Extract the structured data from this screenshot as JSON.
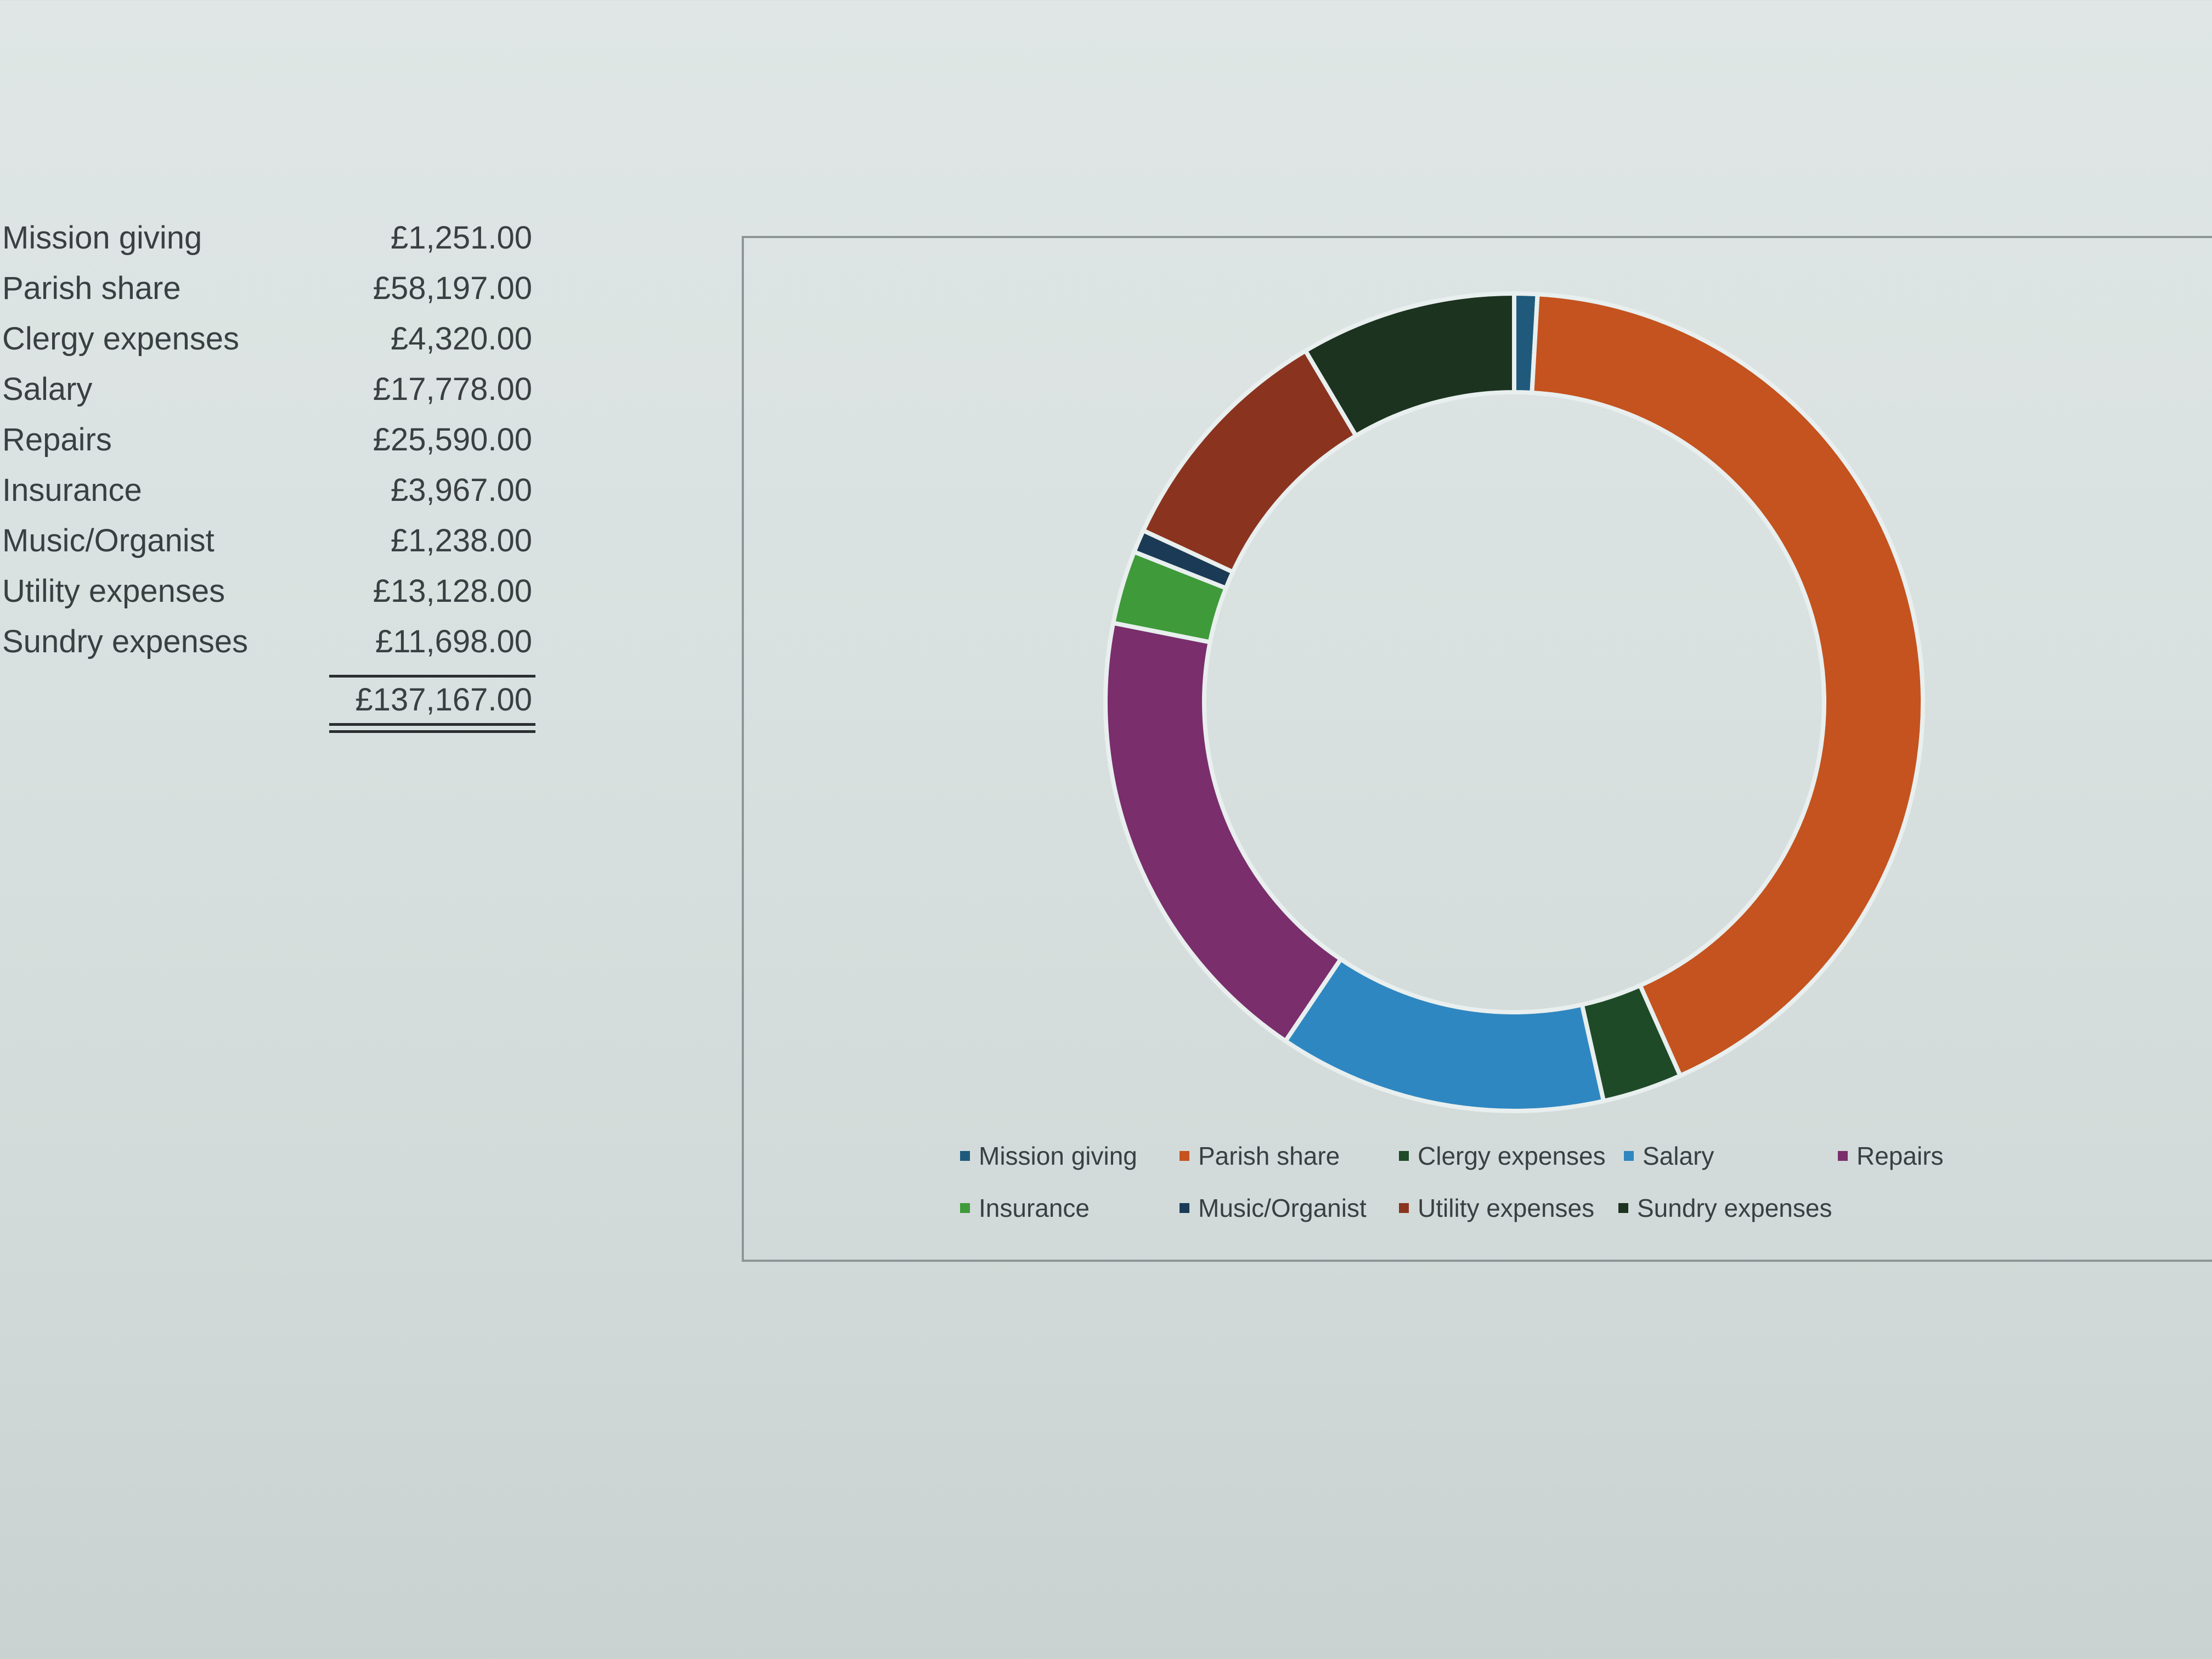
{
  "chart_data": {
    "type": "pie",
    "subtype": "donut",
    "categories": [
      "Mission giving",
      "Parish share",
      "Clergy expenses",
      "Salary",
      "Repairs",
      "Insurance",
      "Music/Organist",
      "Utility expenses",
      "Sundry expenses"
    ],
    "values": [
      1251,
      58197,
      4320,
      17778,
      25590,
      3967,
      1238,
      13128,
      11698
    ],
    "value_labels": [
      "£1,251.00",
      "£58,197.00",
      "£4,320.00",
      "£17,778.00",
      "£25,590.00",
      "£3,967.00",
      "£1,238.00",
      "£13,128.00",
      "£11,698.00"
    ],
    "total_label": "£137,167.00",
    "colors": [
      "#1f5a7c",
      "#c4531f",
      "#1f4a28",
      "#2f87c1",
      "#7a2e6c",
      "#3f9a3a",
      "#1b3a55",
      "#8a3420",
      "#1c3320"
    ],
    "legend_placement": "bottom",
    "legend": [
      "Mission giving",
      "Parish share",
      "Clergy expenses",
      "Salary",
      "Repairs",
      "Insurance",
      "Music/Organist",
      "Utility expenses",
      "Sundry expenses"
    ]
  }
}
